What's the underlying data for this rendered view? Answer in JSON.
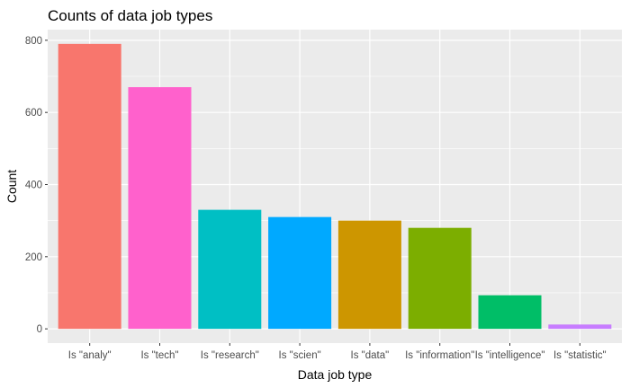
{
  "chart_data": {
    "type": "bar",
    "title": "Counts of data job types",
    "xlabel": "Data job type",
    "ylabel": "Count",
    "categories": [
      "Is \"analy\"",
      "Is \"tech\"",
      "Is \"research\"",
      "Is \"scien\"",
      "Is \"data\"",
      "Is \"information\"",
      "Is \"intelligence\"",
      "Is \"statistic\""
    ],
    "values": [
      790,
      670,
      330,
      310,
      300,
      280,
      93,
      12
    ],
    "colors": [
      "#F8766D",
      "#FF61CC",
      "#00BFC4",
      "#00A9FF",
      "#CD9600",
      "#7CAE00",
      "#00BE67",
      "#C77CFF"
    ],
    "ylim": [
      0,
      800
    ],
    "yticks": [
      0,
      200,
      400,
      600,
      800
    ],
    "ytick_labels": [
      "0",
      "200",
      "400",
      "600",
      "800"
    ],
    "grid": true,
    "legend": "none",
    "panel_background": "#EBEBEB",
    "grid_color": "#FFFFFF"
  }
}
